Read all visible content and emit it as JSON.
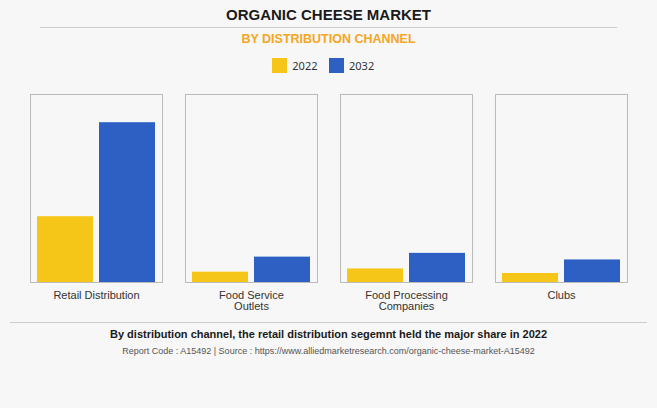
{
  "chart_data": {
    "type": "bar",
    "title": "ORGANIC CHEESE MARKET",
    "subtitle": "BY DISTRIBUTION CHANNEL",
    "categories": [
      "Retail Distribution",
      "Food Service\nOutlets",
      "Food Processing\nCompanies",
      "Clubs"
    ],
    "series": [
      {
        "name": "2022",
        "color": "#F5C518",
        "values": [
          3.5,
          0.55,
          0.72,
          0.48
        ]
      },
      {
        "name": "2032",
        "color": "#2E5FC2",
        "values": [
          8.5,
          1.35,
          1.55,
          1.2
        ]
      }
    ],
    "ylim": [
      0,
      10
    ],
    "tick_labels": "x",
    "grid": false,
    "legend": "top",
    "annotations": [
      "By distribution channel, the retail distribution segemnt held the major share in 2022",
      "Report Code : A15492  |  Source : https://www.alliedmarketresearch.com/organic-cheese-market-A15492"
    ]
  }
}
